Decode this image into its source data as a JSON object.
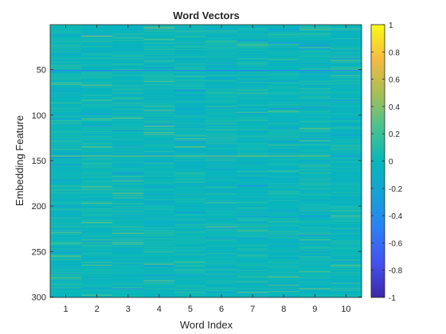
{
  "chart_data": {
    "type": "heatmap",
    "title": "Word Vectors",
    "xlabel": "Word Index",
    "ylabel": "Embedding Feature",
    "x": [
      1,
      2,
      3,
      4,
      5,
      6,
      7,
      8,
      9,
      10
    ],
    "xticks": [
      "1",
      "2",
      "3",
      "4",
      "5",
      "6",
      "7",
      "8",
      "9",
      "10"
    ],
    "yticks": [
      "50",
      "100",
      "150",
      "200",
      "250",
      "300"
    ],
    "ylim": [
      0.5,
      300.5
    ],
    "y_direction": "reversed",
    "rows": 300,
    "columns": 10,
    "colormap": "parula",
    "clim": [
      -1,
      1
    ],
    "colorbar": {
      "ticks": [
        "1",
        "0.8",
        "0.6",
        "0.4",
        "0.2",
        "0",
        "-0.2",
        "-0.4",
        "-0.6",
        "-0.8",
        "-1"
      ],
      "placement": "right"
    },
    "value_range_observed": [
      -0.55,
      0.5
    ],
    "typical_range": [
      -0.15,
      0.15
    ],
    "notable_rows": [
      {
        "feature": 51,
        "approx_value": -0.45,
        "description": "strongly negative across all words"
      },
      {
        "feature": 145,
        "approx_value": 0.35,
        "description": "positive across most words, negative for word 10"
      },
      {
        "feature": 200,
        "approx_value": -0.3,
        "description": "negative for word 1"
      },
      {
        "feature": 178,
        "approx_value": -0.35,
        "description": "negative for word 7"
      },
      {
        "feature": 4,
        "approx_value": 0.45,
        "description": "positive for word 4"
      }
    ],
    "grid": false,
    "legend": "none"
  }
}
